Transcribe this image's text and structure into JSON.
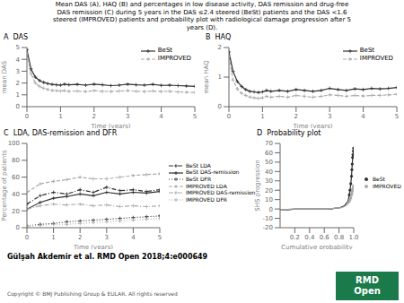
{
  "title": "Mean DAS (A), HAQ (B) and percentages in low disease activity, DAS remission and drug-free\nDAS remission (C) during 5 years in the DAS ≤2.4 steered (BeSt) patients and the DAS <1.6\nsteered (IMPROVED) patients and probability plot with radiological damage progression after 5\nyears (D).",
  "annotations": [
    {
      "text": "Gülşah Akdemir et al. RMD Open 2018;4:e000649"
    },
    {
      "text": "Copyright © BMJ Publishing Group & EULAR. All rights reserved",
      "color": "#555555"
    },
    {
      "text": "RMD\nOpen",
      "color": "#1a7a4a"
    }
  ],
  "chart_data": [
    {
      "type": "line",
      "title": "A  DAS",
      "xlabel": "Time (years)",
      "ylabel": "mean DAS",
      "x": [
        0,
        0.12,
        0.25,
        0.38,
        0.5,
        0.62,
        0.75,
        0.88,
        1.0,
        1.12,
        1.25,
        1.5,
        1.75,
        2.0,
        2.25,
        2.5,
        2.75,
        3.0,
        3.25,
        3.5,
        3.75,
        4.0,
        4.25,
        4.5,
        4.75,
        5.0
      ],
      "series": [
        {
          "name": "BeSt",
          "color": "#303030",
          "line_style": "solid",
          "marker": "+",
          "values": [
            4.8,
            3.2,
            2.5,
            2.2,
            2.05,
            1.95,
            1.88,
            1.85,
            1.82,
            1.9,
            1.85,
            1.88,
            1.82,
            1.9,
            1.85,
            1.78,
            1.82,
            1.9,
            1.85,
            1.82,
            1.88,
            1.8,
            1.82,
            1.78,
            1.75,
            1.72
          ]
        },
        {
          "name": "IMPROVED",
          "color": "#aaaaaa",
          "line_style": "dashed",
          "marker": "+",
          "values": [
            4.5,
            2.8,
            2.0,
            1.7,
            1.55,
            1.45,
            1.38,
            1.35,
            1.32,
            1.35,
            1.3,
            1.32,
            1.28,
            1.35,
            1.3,
            1.28,
            1.32,
            1.35,
            1.3,
            1.28,
            1.32,
            1.28,
            1.3,
            1.25,
            1.22,
            1.2
          ]
        }
      ],
      "xlim": [
        0,
        5
      ],
      "xticks": [
        0,
        1,
        2,
        3,
        4,
        5
      ],
      "ylim": [
        0,
        5
      ],
      "yticks": [
        0,
        1,
        2,
        3,
        4,
        5
      ],
      "grid": false,
      "legend": "upper right"
    },
    {
      "type": "line",
      "title": "B  HAQ",
      "xlabel": "Time (years)",
      "ylabel": "mean HAQ",
      "x": [
        0,
        0.12,
        0.25,
        0.38,
        0.5,
        0.62,
        0.75,
        0.88,
        1.0,
        1.12,
        1.25,
        1.5,
        1.75,
        2.0,
        2.25,
        2.5,
        2.75,
        3.0,
        3.25,
        3.5,
        3.75,
        4.0,
        4.25,
        4.5,
        4.75,
        5.0
      ],
      "series": [
        {
          "name": "BeSt",
          "color": "#303030",
          "line_style": "solid",
          "marker": "+",
          "values": [
            1.85,
            1.2,
            0.85,
            0.68,
            0.58,
            0.52,
            0.5,
            0.48,
            0.5,
            0.55,
            0.52,
            0.55,
            0.52,
            0.58,
            0.55,
            0.52,
            0.55,
            0.62,
            0.58,
            0.55,
            0.6,
            0.58,
            0.62,
            0.6,
            0.62,
            0.65
          ]
        },
        {
          "name": "IMPROVED",
          "color": "#aaaaaa",
          "line_style": "dashed",
          "marker": "+",
          "values": [
            1.7,
            0.9,
            0.6,
            0.45,
            0.38,
            0.33,
            0.3,
            0.28,
            0.3,
            0.35,
            0.32,
            0.35,
            0.32,
            0.38,
            0.35,
            0.32,
            0.35,
            0.4,
            0.38,
            0.35,
            0.38,
            0.36,
            0.38,
            0.38,
            0.4,
            0.42
          ]
        }
      ],
      "xlim": [
        0,
        5
      ],
      "xticks": [
        0,
        1,
        2,
        3,
        4,
        5
      ],
      "ylim": [
        0,
        2
      ],
      "yticks": [
        0,
        1,
        2
      ],
      "grid": false,
      "legend": "upper right"
    },
    {
      "type": "line",
      "title": "C  LDA, DAS-remission and DFR",
      "xlabel": "Time (years)",
      "ylabel": "Percentage of patients",
      "x": [
        0,
        0.5,
        1.0,
        1.5,
        2.0,
        2.5,
        3.0,
        3.5,
        4.0,
        4.5,
        5.0
      ],
      "series": [
        {
          "name": "BeSt LDA",
          "color": "#303030",
          "line_style": "dashdot",
          "marker": "+",
          "values": [
            28,
            38,
            42,
            40,
            45,
            42,
            48,
            44,
            45,
            43,
            45
          ]
        },
        {
          "name": "BeSt DAS-remission",
          "color": "#303030",
          "line_style": "solid",
          "marker": "+",
          "values": [
            22,
            30,
            35,
            37,
            40,
            38,
            42,
            40,
            42,
            41,
            43
          ]
        },
        {
          "name": "BeSt DFR",
          "color": "#303030",
          "line_style": "dotted",
          "marker": "+",
          "values": [
            2,
            4,
            5,
            7,
            8,
            9,
            10,
            11,
            12,
            13,
            14
          ]
        },
        {
          "name": "IMPROVED LDA",
          "color": "#aaaaaa",
          "line_style": "dashed",
          "marker": "+",
          "values": [
            42,
            52,
            55,
            57,
            60,
            58,
            58,
            60,
            62,
            63,
            64
          ]
        },
        {
          "name": "IMPROVED DAS-remission",
          "color": "#aaaaaa",
          "line_style": "dashdot",
          "marker": "+",
          "values": [
            22,
            26,
            28,
            27,
            28,
            26,
            27,
            25,
            26,
            25,
            26
          ]
        },
        {
          "name": "IMPROVED DFR",
          "color": "#aaaaaa",
          "line_style": "dotted",
          "marker": "+",
          "values": [
            2,
            3,
            4,
            4,
            5,
            6,
            7,
            8,
            9,
            10,
            11
          ]
        }
      ],
      "xlim": [
        0,
        5
      ],
      "xticks": [
        0,
        1,
        2,
        3,
        4,
        5
      ],
      "ylim": [
        0,
        100
      ],
      "yticks": [
        0,
        20,
        40,
        60,
        80,
        100
      ],
      "grid": false,
      "legend": "right"
    },
    {
      "type": "line",
      "title": "D  Probability plot",
      "xlabel": "Cumulative probability",
      "ylabel": "SHS progression",
      "x": [
        0.0,
        0.05,
        0.1,
        0.15,
        0.2,
        0.25,
        0.3,
        0.35,
        0.4,
        0.45,
        0.5,
        0.55,
        0.6,
        0.65,
        0.7,
        0.75,
        0.8,
        0.83,
        0.86,
        0.88,
        0.9,
        0.92,
        0.93,
        0.94,
        0.95,
        0.96,
        0.97,
        0.975,
        0.98,
        0.985,
        0.99,
        0.995,
        1.0
      ],
      "series": [
        {
          "name": "BeSt",
          "type": "line",
          "color": "#303030",
          "line_style": "solid",
          "values": [
            -1,
            -1,
            -1,
            -0.5,
            0,
            0,
            0,
            0,
            0,
            0,
            0,
            0,
            0,
            0,
            0,
            1,
            1,
            2,
            3,
            4,
            6,
            8,
            11,
            15,
            20,
            27,
            35,
            42,
            48,
            55,
            58,
            62,
            65
          ]
        },
        {
          "name": "IMPROVED",
          "type": "line",
          "color": "#aaaaaa",
          "line_style": "solid",
          "values": [
            -1,
            -1,
            -0.5,
            0,
            0,
            0,
            0,
            0,
            0,
            0,
            0,
            0,
            0,
            0,
            0.5,
            1,
            1,
            1.5,
            2,
            3,
            4,
            5,
            6,
            8,
            10,
            12,
            15,
            17,
            19,
            21,
            22,
            24,
            25
          ]
        },
        {
          "name": "BeSt",
          "type": "scatter",
          "color": "#303030",
          "marker": "o",
          "values": [
            null,
            null,
            null,
            null,
            null,
            null,
            null,
            null,
            null,
            null,
            null,
            null,
            null,
            null,
            null,
            null,
            null,
            null,
            null,
            null,
            null,
            null,
            null,
            15,
            20,
            27,
            35,
            42,
            48,
            55,
            58,
            62,
            65
          ]
        },
        {
          "name": "IMPROVED",
          "type": "scatter",
          "color": "#aaaaaa",
          "marker": "o",
          "values": [
            null,
            null,
            null,
            null,
            null,
            null,
            null,
            null,
            null,
            null,
            null,
            null,
            null,
            null,
            null,
            null,
            null,
            null,
            null,
            null,
            null,
            null,
            null,
            8,
            10,
            12,
            15,
            17,
            19,
            21,
            22,
            24,
            25
          ]
        }
      ],
      "xlim": [
        0,
        1.0
      ],
      "xticks": [
        0.2,
        0.4,
        0.6,
        0.8,
        {
          "value": 1.0,
          "label": "1.0"
        }
      ],
      "ylim": [
        -20,
        70
      ],
      "yticks": [
        -20,
        -10,
        0,
        10,
        20,
        30,
        40,
        50,
        60,
        70
      ],
      "grid": false,
      "legend": "right"
    }
  ]
}
